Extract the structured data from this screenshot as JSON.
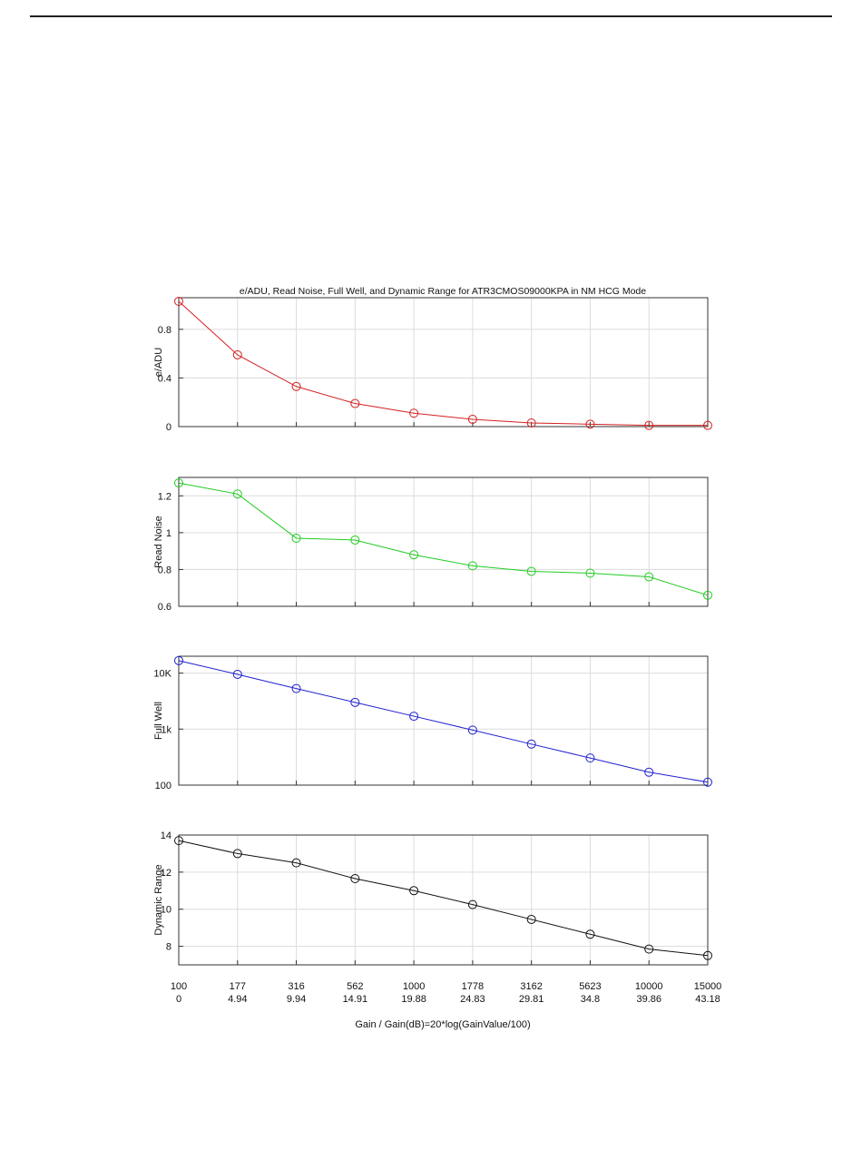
{
  "page": {
    "title": "e/ADU, Read Noise, Full Well, and Dynamic Range for ATR3CMOS09000KPA in NM HCG Mode"
  },
  "chart_data": {
    "type": "line",
    "title": "e/ADU, Read Noise, Full Well, and Dynamic Range for ATR3CMOS09000KPA in NM HCG Mode",
    "xlabel": "Gain / Gain(dB)=20*log(GainValue/100)",
    "x_categories": [
      "100",
      "177",
      "316",
      "562",
      "1000",
      "1778",
      "3162",
      "5623",
      "10000",
      "15000"
    ],
    "x_categories_db": [
      "0",
      "4.94",
      "9.94",
      "14.91",
      "19.88",
      "24.83",
      "29.81",
      "34.8",
      "39.86",
      "43.18"
    ],
    "grid": true,
    "panels": [
      {
        "ylabel": "e/ADU",
        "color": "#d42020",
        "scale": "linear",
        "ylim": [
          0,
          1.06
        ],
        "yticks": [
          0,
          0.4,
          0.8
        ],
        "ytick_labels": [
          "0",
          "0.4",
          "0.8"
        ],
        "values": [
          1.03,
          0.59,
          0.33,
          0.19,
          0.11,
          0.06,
          0.03,
          0.02,
          0.01,
          0.01
        ]
      },
      {
        "ylabel": "Read Noise",
        "color": "#22cc22",
        "scale": "linear",
        "ylim": [
          0.6,
          1.3
        ],
        "yticks": [
          0.6,
          0.8,
          1.0,
          1.2
        ],
        "ytick_labels": [
          "0.6",
          "0.8",
          "1",
          "1.2"
        ],
        "values": [
          1.27,
          1.21,
          0.97,
          0.96,
          0.88,
          0.82,
          0.79,
          0.78,
          0.76,
          0.66
        ]
      },
      {
        "ylabel": "Full Well",
        "color": "#2020d0",
        "scale": "log",
        "ylim": [
          100,
          20000
        ],
        "yticks": [
          100,
          1000,
          10000
        ],
        "ytick_labels": [
          "100",
          "1k",
          "10K"
        ],
        "values": [
          16700,
          9500,
          5300,
          3000,
          1700,
          960,
          540,
          305,
          170,
          113
        ]
      },
      {
        "ylabel": "Dynamic Range",
        "color": "#111111",
        "scale": "linear",
        "ylim": [
          7,
          14
        ],
        "yticks": [
          8,
          10,
          12,
          14
        ],
        "ytick_labels": [
          "8",
          "10",
          "12",
          "14"
        ],
        "values": [
          13.7,
          13.0,
          12.5,
          11.65,
          11.0,
          10.25,
          9.45,
          8.65,
          7.85,
          7.5
        ]
      }
    ]
  }
}
